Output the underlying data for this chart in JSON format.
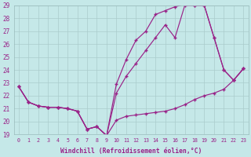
{
  "xlabel": "Windchill (Refroidissement éolien,°C)",
  "xlim": [
    -0.5,
    23.5
  ],
  "ylim": [
    19,
    29
  ],
  "background_color": "#c5e8e8",
  "line_color": "#992288",
  "grid_color": "#aacccc",
  "line1_x": [
    0,
    1,
    2,
    3,
    4,
    5,
    6,
    7,
    8,
    9,
    10,
    11,
    12,
    13,
    14,
    15,
    16,
    17,
    18,
    19,
    20,
    21,
    22,
    23
  ],
  "line1_y": [
    22.7,
    21.5,
    21.2,
    21.1,
    21.1,
    21.0,
    20.8,
    19.4,
    19.6,
    18.9,
    20.1,
    20.4,
    20.5,
    20.6,
    20.7,
    20.8,
    21.0,
    21.3,
    21.7,
    22.0,
    22.2,
    22.5,
    23.2,
    24.1
  ],
  "line2_x": [
    0,
    1,
    2,
    3,
    4,
    5,
    6,
    7,
    8,
    9,
    10,
    11,
    12,
    13,
    14,
    15,
    16,
    17,
    18,
    19,
    20,
    21,
    22,
    23
  ],
  "line2_y": [
    22.7,
    21.5,
    21.2,
    21.1,
    21.1,
    21.0,
    20.8,
    19.4,
    19.6,
    18.9,
    22.9,
    24.8,
    26.3,
    27.0,
    28.3,
    28.6,
    28.9,
    29.1,
    29.0,
    29.0,
    26.5,
    24.0,
    23.2,
    24.1
  ],
  "line3_x": [
    0,
    1,
    2,
    3,
    4,
    5,
    6,
    7,
    8,
    9,
    10,
    11,
    12,
    13,
    14,
    15,
    16,
    17,
    18,
    19,
    20,
    21,
    22,
    23
  ],
  "line3_y": [
    22.7,
    21.5,
    21.2,
    21.1,
    21.1,
    21.0,
    20.8,
    19.4,
    19.6,
    18.9,
    22.2,
    23.5,
    24.5,
    25.5,
    26.5,
    27.5,
    26.5,
    29.0,
    29.0,
    29.0,
    26.5,
    24.0,
    23.2,
    24.1
  ]
}
